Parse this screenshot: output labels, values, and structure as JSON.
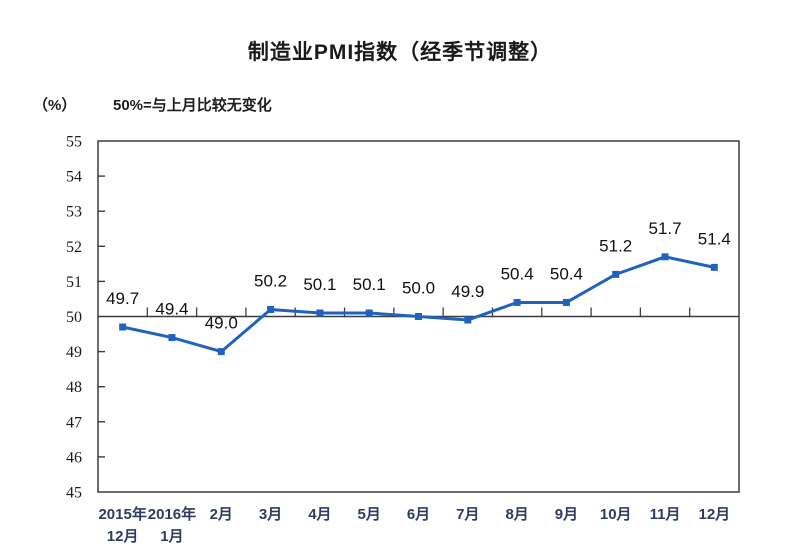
{
  "chart": {
    "title": "制造业PMI指数（经季节调整）",
    "unit_label": "（%）",
    "note": "50%=与上月比较无变化"
  },
  "chart_data": {
    "type": "line",
    "title": "制造业PMI指数（经季节调整）",
    "subtitle_note": "50%=与上月比较无变化",
    "unit": "%",
    "categories": [
      "2015年12月",
      "2016年1月",
      "2月",
      "3月",
      "4月",
      "5月",
      "6月",
      "7月",
      "8月",
      "9月",
      "10月",
      "11月",
      "12月"
    ],
    "x_tick_line1": [
      "2015年",
      "2016年",
      "2月",
      "3月",
      "4月",
      "5月",
      "6月",
      "7月",
      "8月",
      "9月",
      "10月",
      "11月",
      "12月"
    ],
    "x_tick_line2": [
      "12月",
      "1月",
      "",
      "",
      "",
      "",
      "",
      "",
      "",
      "",
      "",
      "",
      ""
    ],
    "values": [
      49.7,
      49.4,
      49.0,
      50.2,
      50.1,
      50.1,
      50.0,
      49.9,
      50.4,
      50.4,
      51.2,
      51.7,
      51.4
    ],
    "data_labels": [
      "49.7",
      "49.4",
      "49.0",
      "50.2",
      "50.1",
      "50.1",
      "50.0",
      "49.9",
      "50.4",
      "50.4",
      "51.2",
      "51.7",
      "51.4"
    ],
    "ylim": [
      45,
      55
    ],
    "y_ticks": [
      45,
      46,
      47,
      48,
      49,
      50,
      51,
      52,
      53,
      54,
      55
    ],
    "reference_line": 50,
    "grid": "off",
    "legend": "none",
    "marker": "square",
    "colors": {
      "line": "#1f63be",
      "axis": "#3d3d3d",
      "y_label": "#1c1c1c",
      "x_label": "#2e3d5f",
      "data_label": "#111111"
    }
  }
}
